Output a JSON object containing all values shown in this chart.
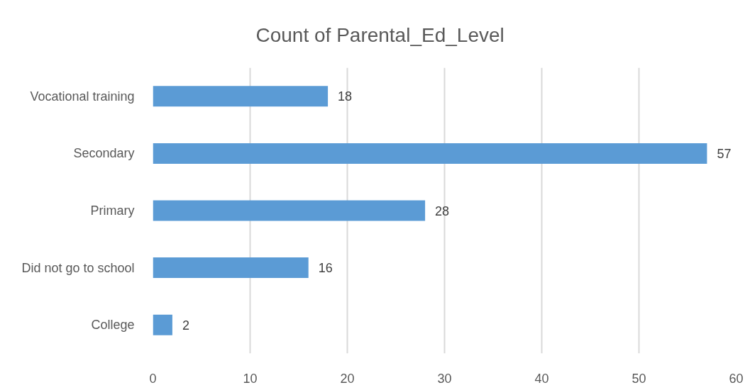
{
  "chart_data": {
    "type": "bar",
    "orientation": "horizontal",
    "title": "Count of Parental_Ed_Level",
    "categories": [
      "Vocational training",
      "Secondary",
      "Primary",
      "Did not go to school",
      "College"
    ],
    "values": [
      18,
      57,
      28,
      16,
      2
    ],
    "color": "#5b9bd5",
    "xlim": [
      0,
      60
    ],
    "xticks": [
      0,
      10,
      20,
      30,
      40,
      50,
      60
    ],
    "grid": "x",
    "data_labels": true
  }
}
